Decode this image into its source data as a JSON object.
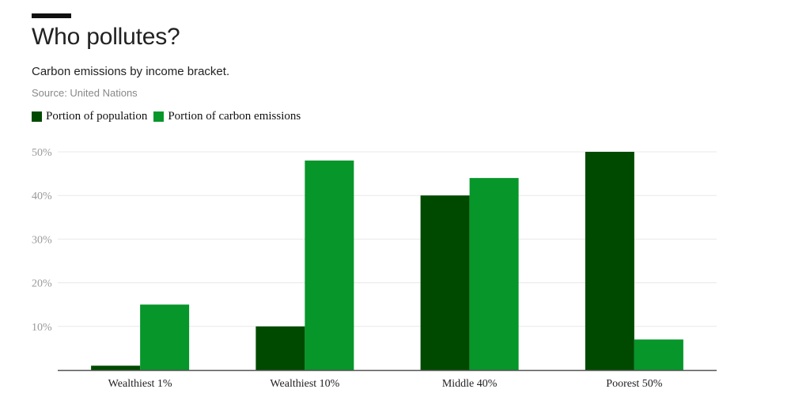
{
  "title": "Who pollutes?",
  "subtitle": "Carbon emissions by income bracket.",
  "source": "Source: United Nations",
  "chart_data": {
    "type": "bar",
    "title": "Who pollutes?",
    "subtitle": "Carbon emissions by income bracket.",
    "categories": [
      "Wealthiest 1%",
      "Wealthiest 10%",
      "Middle 40%",
      "Poorest 50%"
    ],
    "series": [
      {
        "name": "Portion of population",
        "values": [
          1,
          10,
          40,
          50
        ],
        "color": "#004a00"
      },
      {
        "name": "Portion of carbon emissions",
        "values": [
          15,
          48,
          44,
          7
        ],
        "color": "#06962a"
      }
    ],
    "yticks": [
      "10%",
      "20%",
      "30%",
      "40%",
      "50%"
    ],
    "ytick_values": [
      10,
      20,
      30,
      40,
      50
    ],
    "ylim": [
      0,
      50
    ],
    "grid": true,
    "legend_position": "top-left",
    "xlabel": "",
    "ylabel": ""
  }
}
